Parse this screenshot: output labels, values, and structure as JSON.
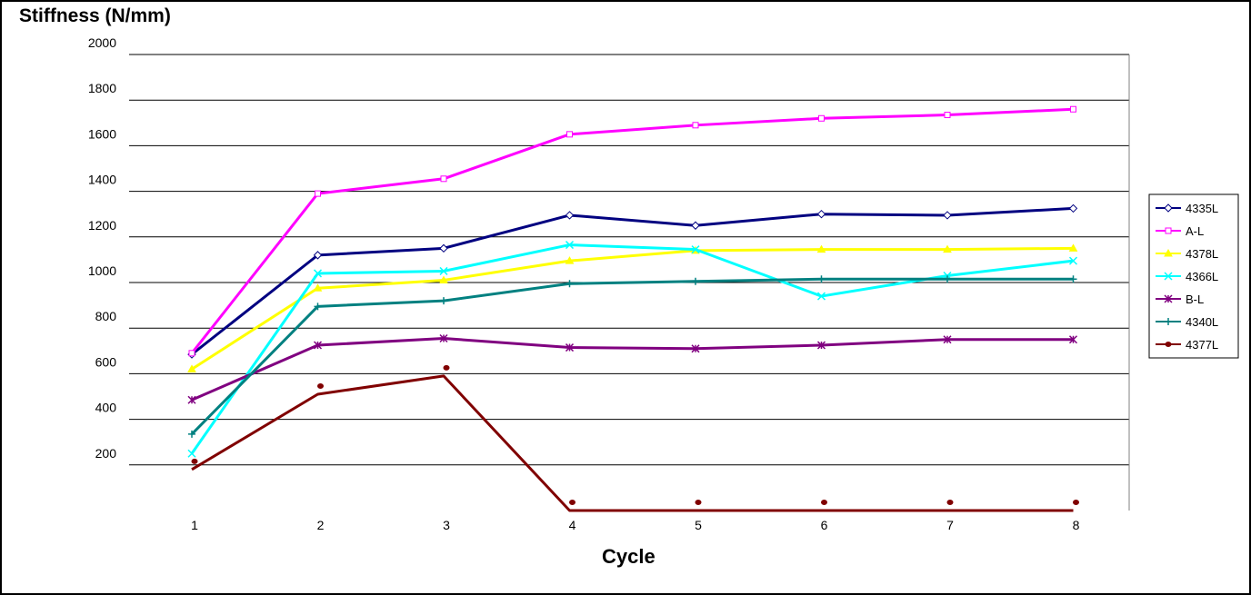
{
  "chart_data": {
    "type": "line",
    "title": "",
    "xlabel": "Cycle",
    "ylabel": "Stiffness (N/mm)",
    "categories": [
      "1",
      "2",
      "3",
      "4",
      "5",
      "6",
      "7",
      "8"
    ],
    "ylim": [
      0,
      2000
    ],
    "yticks": [
      "200",
      "400",
      "600",
      "800",
      "1000",
      "1200",
      "1400",
      "1600",
      "1800",
      "2000"
    ],
    "grid": "horizontal",
    "legend_position": "right",
    "series": [
      {
        "name": "4335L",
        "color": "#000080",
        "marker": "diamond",
        "values": [
          685,
          1120,
          1150,
          1295,
          1250,
          1300,
          1295,
          1325
        ]
      },
      {
        "name": "A-L",
        "color": "#ff00ff",
        "marker": "square",
        "values": [
          690,
          1390,
          1455,
          1650,
          1690,
          1720,
          1735,
          1760
        ]
      },
      {
        "name": "4378L",
        "color": "#ffff00",
        "marker": "triangle",
        "values": [
          620,
          975,
          1010,
          1095,
          1140,
          1145,
          1145,
          1150
        ]
      },
      {
        "name": "4366L",
        "color": "#00ffff",
        "marker": "x",
        "values": [
          250,
          1040,
          1050,
          1165,
          1145,
          940,
          1030,
          1095
        ]
      },
      {
        "name": "B-L",
        "color": "#800080",
        "marker": "star",
        "values": [
          485,
          725,
          755,
          715,
          710,
          725,
          750,
          750
        ]
      },
      {
        "name": "4340L",
        "color": "#008080",
        "marker": "plus",
        "values": [
          335,
          895,
          920,
          995,
          1005,
          1015,
          1015,
          1015
        ]
      },
      {
        "name": "4377L",
        "color": "#800000",
        "marker": "circle",
        "values": [
          180,
          510,
          590,
          0,
          0,
          0,
          0,
          0
        ]
      }
    ]
  }
}
